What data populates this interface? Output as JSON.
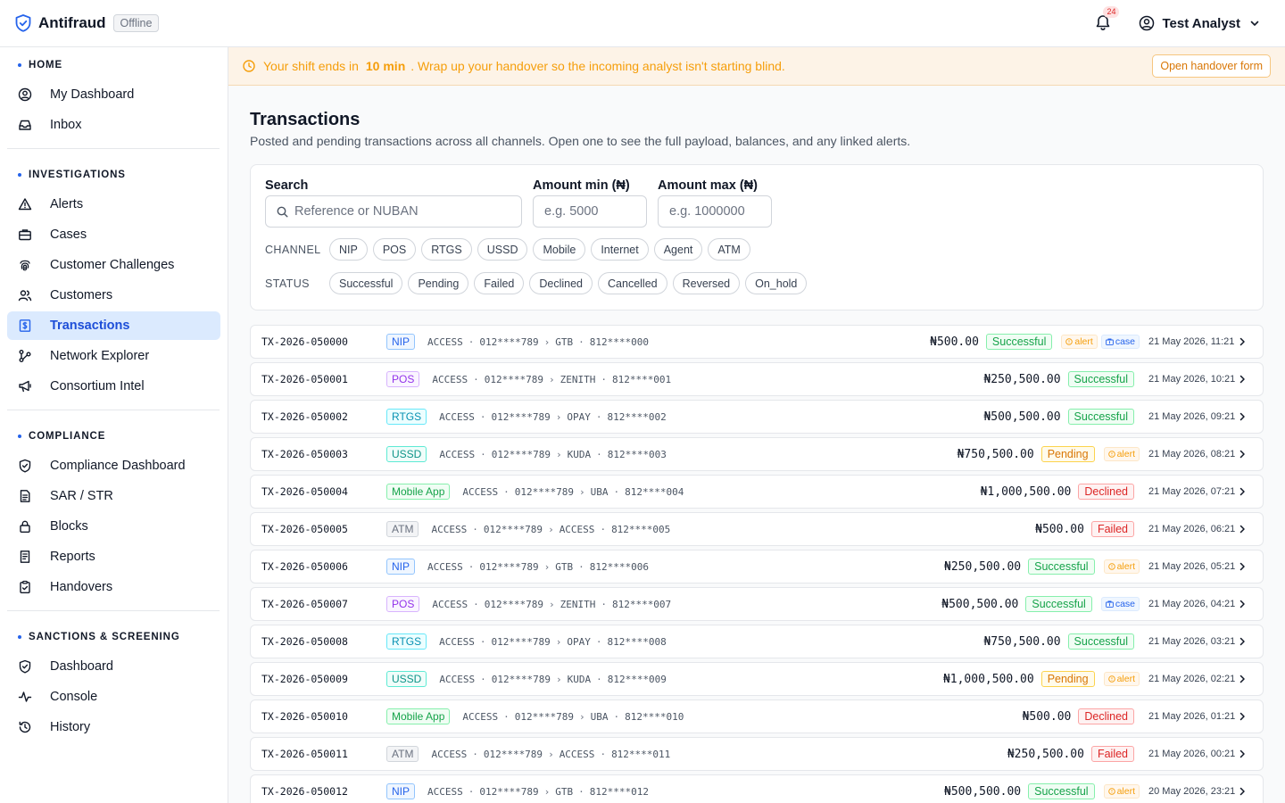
{
  "app": {
    "name": "Antifraud",
    "status_badge": "Offline"
  },
  "header": {
    "notification_count": "24",
    "user_name": "Test Analyst"
  },
  "sidebar": {
    "sections": [
      {
        "title": "HOME",
        "items": [
          {
            "label": "My Dashboard",
            "icon": "user-circle-icon"
          },
          {
            "label": "Inbox",
            "icon": "inbox-icon"
          }
        ]
      },
      {
        "title": "INVESTIGATIONS",
        "items": [
          {
            "label": "Alerts",
            "icon": "warning-triangle-icon"
          },
          {
            "label": "Cases",
            "icon": "briefcase-icon"
          },
          {
            "label": "Customer Challenges",
            "icon": "fingerprint-icon"
          },
          {
            "label": "Customers",
            "icon": "users-icon"
          },
          {
            "label": "Transactions",
            "icon": "receipt-icon",
            "active": true
          },
          {
            "label": "Network Explorer",
            "icon": "network-icon"
          },
          {
            "label": "Consortium Intel",
            "icon": "megaphone-icon"
          }
        ]
      },
      {
        "title": "COMPLIANCE",
        "items": [
          {
            "label": "Compliance Dashboard",
            "icon": "shield-check-icon"
          },
          {
            "label": "SAR / STR",
            "icon": "document-icon"
          },
          {
            "label": "Blocks",
            "icon": "lock-icon"
          },
          {
            "label": "Reports",
            "icon": "report-icon"
          },
          {
            "label": "Handovers",
            "icon": "clipboard-icon"
          }
        ]
      },
      {
        "title": "SANCTIONS & SCREENING",
        "items": [
          {
            "label": "Dashboard",
            "icon": "shield-check-icon"
          },
          {
            "label": "Console",
            "icon": "activity-icon"
          },
          {
            "label": "History",
            "icon": "history-icon"
          }
        ]
      }
    ]
  },
  "banner": {
    "text_before": "Your shift ends in",
    "highlight": "10 min",
    "text_after": ". Wrap up your handover so the incoming analyst isn't starting blind.",
    "button": "Open handover form"
  },
  "page": {
    "title": "Transactions",
    "subtitle": "Posted and pending transactions across all channels. Open one to see the full payload, balances, and any linked alerts."
  },
  "filters": {
    "search": {
      "label": "Search",
      "placeholder": "Reference or NUBAN"
    },
    "amount_min": {
      "label": "Amount min (₦)",
      "placeholder": "e.g. 5000"
    },
    "amount_max": {
      "label": "Amount max (₦)",
      "placeholder": "e.g. 1000000"
    },
    "channel_label": "CHANNEL",
    "channels": [
      "NIP",
      "POS",
      "RTGS",
      "USSD",
      "Mobile",
      "Internet",
      "Agent",
      "ATM"
    ],
    "status_label": "STATUS",
    "statuses": [
      "Successful",
      "Pending",
      "Failed",
      "Declined",
      "Cancelled",
      "Reversed",
      "On_hold"
    ]
  },
  "colors": {
    "accent": "#2563eb",
    "warning": "#f59e0b",
    "success": "#16a34a",
    "danger": "#dc2626"
  },
  "transactions": [
    {
      "id": "TX-2026-050000",
      "channel": "NIP",
      "channel_class": "NIP",
      "from_bank": "ACCESS",
      "from_acct": "012****789",
      "to_bank": "GTB",
      "to_acct": "812****000",
      "amount": "₦500.00",
      "status": "Successful",
      "alert": true,
      "case": true,
      "date": "21 May 2026, 11:21"
    },
    {
      "id": "TX-2026-050001",
      "channel": "POS",
      "channel_class": "POS",
      "from_bank": "ACCESS",
      "from_acct": "012****789",
      "to_bank": "ZENITH",
      "to_acct": "812****001",
      "amount": "₦250,500.00",
      "status": "Successful",
      "alert": false,
      "case": false,
      "date": "21 May 2026, 10:21"
    },
    {
      "id": "TX-2026-050002",
      "channel": "RTGS",
      "channel_class": "RTGS",
      "from_bank": "ACCESS",
      "from_acct": "012****789",
      "to_bank": "OPAY",
      "to_acct": "812****002",
      "amount": "₦500,500.00",
      "status": "Successful",
      "alert": false,
      "case": false,
      "date": "21 May 2026, 09:21"
    },
    {
      "id": "TX-2026-050003",
      "channel": "USSD",
      "channel_class": "USSD",
      "from_bank": "ACCESS",
      "from_acct": "012****789",
      "to_bank": "KUDA",
      "to_acct": "812****003",
      "amount": "₦750,500.00",
      "status": "Pending",
      "alert": true,
      "case": false,
      "date": "21 May 2026, 08:21"
    },
    {
      "id": "TX-2026-050004",
      "channel": "Mobile App",
      "channel_class": "Mobile",
      "from_bank": "ACCESS",
      "from_acct": "012****789",
      "to_bank": "UBA",
      "to_acct": "812****004",
      "amount": "₦1,000,500.00",
      "status": "Declined",
      "alert": false,
      "case": false,
      "date": "21 May 2026, 07:21"
    },
    {
      "id": "TX-2026-050005",
      "channel": "ATM",
      "channel_class": "ATM",
      "from_bank": "ACCESS",
      "from_acct": "012****789",
      "to_bank": "ACCESS",
      "to_acct": "812****005",
      "amount": "₦500.00",
      "status": "Failed",
      "alert": false,
      "case": false,
      "date": "21 May 2026, 06:21"
    },
    {
      "id": "TX-2026-050006",
      "channel": "NIP",
      "channel_class": "NIP",
      "from_bank": "ACCESS",
      "from_acct": "012****789",
      "to_bank": "GTB",
      "to_acct": "812****006",
      "amount": "₦250,500.00",
      "status": "Successful",
      "alert": true,
      "case": false,
      "date": "21 May 2026, 05:21"
    },
    {
      "id": "TX-2026-050007",
      "channel": "POS",
      "channel_class": "POS",
      "from_bank": "ACCESS",
      "from_acct": "012****789",
      "to_bank": "ZENITH",
      "to_acct": "812****007",
      "amount": "₦500,500.00",
      "status": "Successful",
      "alert": false,
      "case": true,
      "date": "21 May 2026, 04:21"
    },
    {
      "id": "TX-2026-050008",
      "channel": "RTGS",
      "channel_class": "RTGS",
      "from_bank": "ACCESS",
      "from_acct": "012****789",
      "to_bank": "OPAY",
      "to_acct": "812****008",
      "amount": "₦750,500.00",
      "status": "Successful",
      "alert": false,
      "case": false,
      "date": "21 May 2026, 03:21"
    },
    {
      "id": "TX-2026-050009",
      "channel": "USSD",
      "channel_class": "USSD",
      "from_bank": "ACCESS",
      "from_acct": "012****789",
      "to_bank": "KUDA",
      "to_acct": "812****009",
      "amount": "₦1,000,500.00",
      "status": "Pending",
      "alert": true,
      "case": false,
      "date": "21 May 2026, 02:21"
    },
    {
      "id": "TX-2026-050010",
      "channel": "Mobile App",
      "channel_class": "Mobile",
      "from_bank": "ACCESS",
      "from_acct": "012****789",
      "to_bank": "UBA",
      "to_acct": "812****010",
      "amount": "₦500.00",
      "status": "Declined",
      "alert": false,
      "case": false,
      "date": "21 May 2026, 01:21"
    },
    {
      "id": "TX-2026-050011",
      "channel": "ATM",
      "channel_class": "ATM",
      "from_bank": "ACCESS",
      "from_acct": "012****789",
      "to_bank": "ACCESS",
      "to_acct": "812****011",
      "amount": "₦250,500.00",
      "status": "Failed",
      "alert": false,
      "case": false,
      "date": "21 May 2026, 00:21"
    },
    {
      "id": "TX-2026-050012",
      "channel": "NIP",
      "channel_class": "NIP",
      "from_bank": "ACCESS",
      "from_acct": "012****789",
      "to_bank": "GTB",
      "to_acct": "812****012",
      "amount": "₦500,500.00",
      "status": "Successful",
      "alert": true,
      "case": false,
      "date": "20 May 2026, 23:21"
    }
  ],
  "labels": {
    "alert": "alert",
    "case": "case"
  }
}
